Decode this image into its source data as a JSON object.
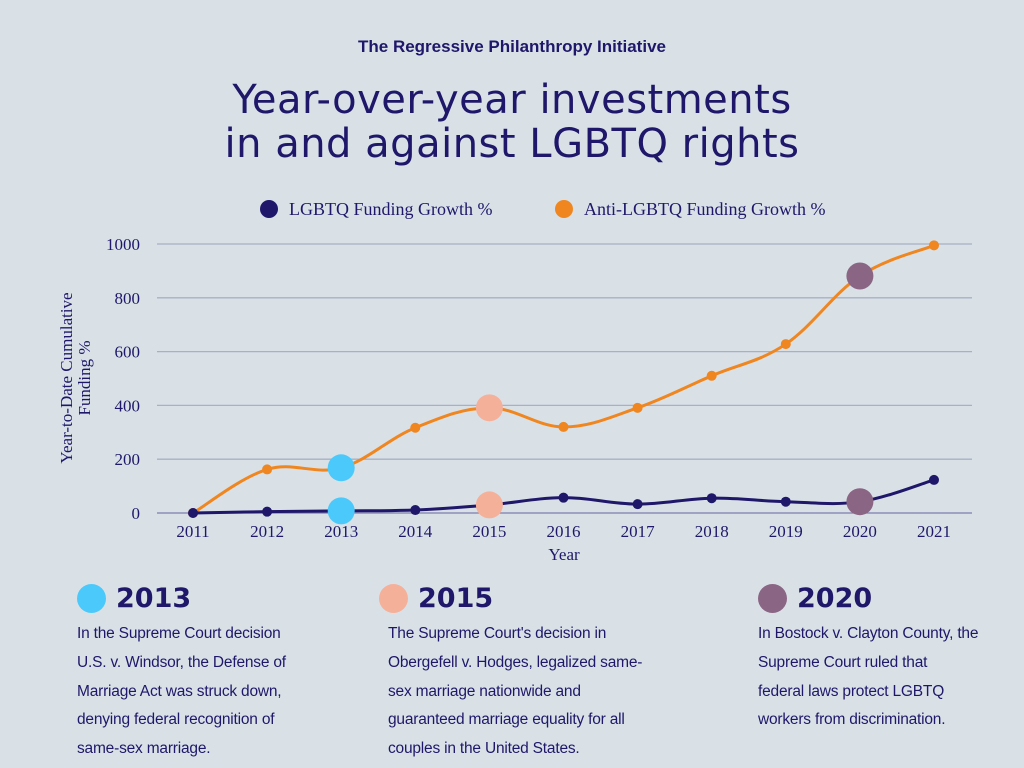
{
  "organization": "The Regressive Philanthropy Initiative",
  "title_lines": [
    "Year-over-year investments",
    "in and against LGBTQ rights"
  ],
  "chart_data": {
    "type": "line",
    "title": "Year-over-year investments in and against LGBTQ rights",
    "xlabel": "Year",
    "ylabel_lines": [
      "Year-to-Date Cumulative",
      "Funding %"
    ],
    "x": [
      "2011",
      "2012",
      "2013",
      "2014",
      "2015",
      "2016",
      "2017",
      "2018",
      "2019",
      "2020",
      "2021"
    ],
    "ylim": [
      0,
      1000
    ],
    "yticks": [
      "0",
      "200",
      "400",
      "600",
      "800",
      "1000"
    ],
    "grid": true,
    "legend_position": "top",
    "series": [
      {
        "name": "LGBTQ Funding Growth %",
        "color": "#1f1769",
        "values": [
          0,
          5,
          8,
          11,
          30,
          57,
          33,
          55,
          42,
          42,
          123
        ]
      },
      {
        "name": "Anti-LGBTQ Funding Growth %",
        "color": "#f0861f",
        "values": [
          0,
          162,
          168,
          317,
          391,
          320,
          391,
          510,
          628,
          881,
          995
        ]
      }
    ],
    "highlights": [
      {
        "year": "2013",
        "color": "#4cc9fb"
      },
      {
        "year": "2015",
        "color": "#f5b09a"
      },
      {
        "year": "2020",
        "color": "#8a6584"
      }
    ]
  },
  "notes": [
    {
      "year": "2013",
      "color": "#4cc9fb",
      "lines": [
        "In the Supreme Court decision",
        "U.S. v. Windsor, the Defense of",
        "Marriage Act was struck down,",
        "denying federal recognition of",
        "same-sex marriage."
      ]
    },
    {
      "year": "2015",
      "color": "#f5b09a",
      "lines": [
        "The Supreme Court's decision in",
        "Obergefell v. Hodges, legalized same-",
        "sex marriage nationwide and",
        "guaranteed marriage equality for all",
        "couples in the United States."
      ]
    },
    {
      "year": "2020",
      "color": "#8a6584",
      "lines": [
        "In Bostock v. Clayton County, the",
        "Supreme Court ruled that",
        "federal laws protect LGBTQ",
        "workers from discrimination."
      ]
    }
  ]
}
